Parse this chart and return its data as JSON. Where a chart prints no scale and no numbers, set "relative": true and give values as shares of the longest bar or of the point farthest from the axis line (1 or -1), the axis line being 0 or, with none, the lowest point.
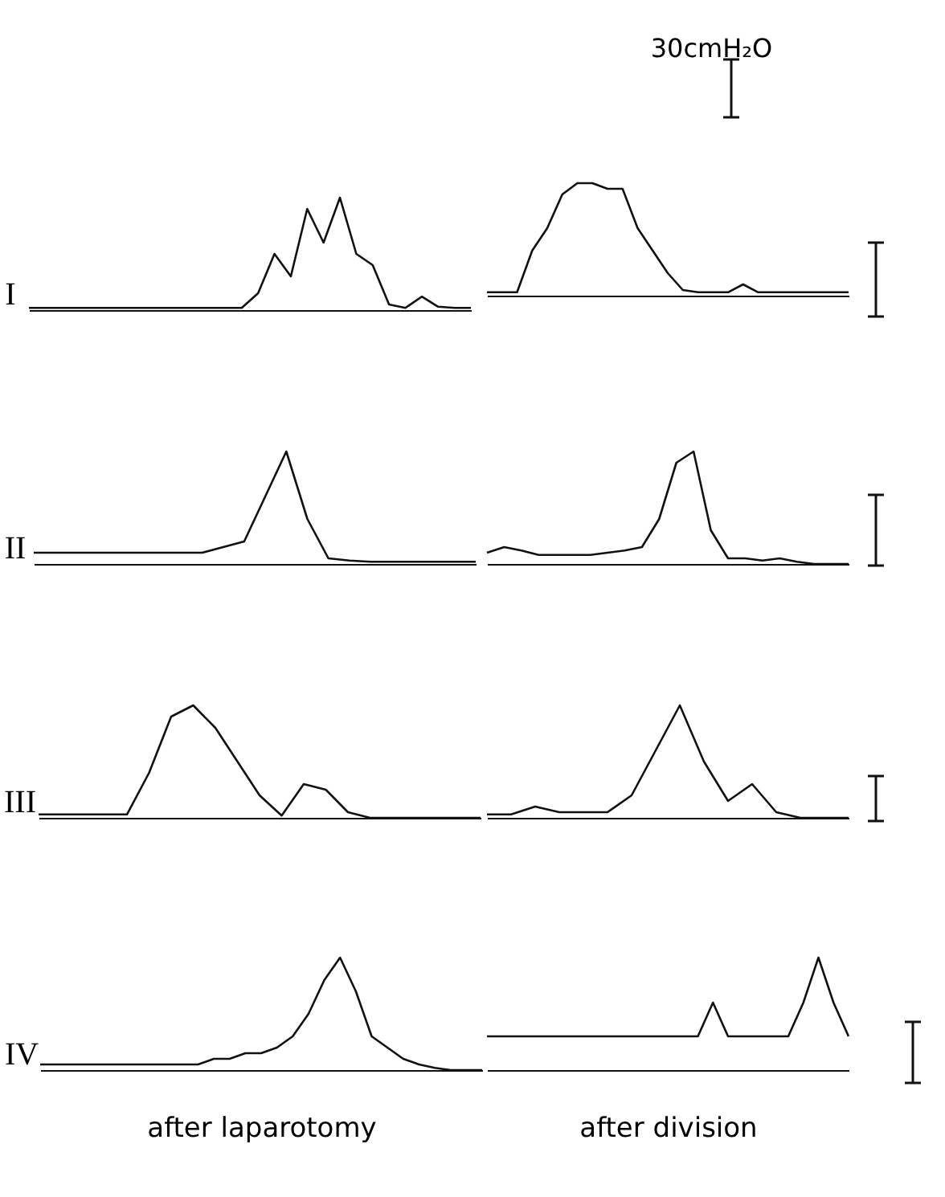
{
  "chart_data": [
    {
      "type": "line",
      "relative": true,
      "ylabel": "I",
      "categories": [
        null,
        null,
        null,
        null,
        null,
        null,
        null,
        null,
        null,
        null,
        null,
        null,
        null,
        null,
        null,
        null,
        null,
        null,
        null,
        null,
        null,
        null,
        null,
        null,
        null,
        null,
        null,
        null
      ],
      "series": [
        {
          "color": "#111111",
          "values": [
            0.02,
            0.02,
            0.02,
            0.02,
            0.02,
            0.02,
            0.02,
            0.02,
            0.02,
            0.02,
            0.02,
            0.02,
            0.02,
            0.02,
            0.15,
            0.5,
            0.3,
            0.9,
            0.6,
            1.0,
            0.5,
            0.4,
            0.05,
            0.02,
            0.12,
            0.03,
            0.02,
            0.02
          ]
        }
      ]
    },
    {
      "type": "line",
      "relative": true,
      "annotations": [
        "30cmH₂O"
      ],
      "categories": [
        null,
        null,
        null,
        null,
        null,
        null,
        null,
        null,
        null,
        null,
        null,
        null,
        null,
        null,
        null,
        null,
        null,
        null,
        null,
        null,
        null,
        null,
        null,
        null,
        null
      ],
      "series": [
        {
          "color": "#111111",
          "values": [
            0.03,
            0.03,
            0.03,
            0.4,
            0.6,
            0.9,
            1.0,
            1.0,
            0.95,
            0.95,
            0.6,
            0.4,
            0.2,
            0.05,
            0.03,
            0.03,
            0.03,
            0.1,
            0.03,
            0.03,
            0.03,
            0.03,
            0.03,
            0.03,
            0.03
          ]
        }
      ]
    },
    {
      "type": "line",
      "relative": true,
      "ylabel": "II",
      "categories": [
        null,
        null,
        null,
        null,
        null,
        null,
        null,
        null,
        null,
        null,
        null,
        null,
        null,
        null,
        null,
        null,
        null,
        null,
        null,
        null,
        null,
        null
      ],
      "series": [
        {
          "color": "#111111",
          "values": [
            0.1,
            0.1,
            0.1,
            0.1,
            0.1,
            0.1,
            0.1,
            0.1,
            0.1,
            0.15,
            0.2,
            0.6,
            1.0,
            0.4,
            0.05,
            0.03,
            0.02,
            0.02,
            0.02,
            0.02,
            0.02,
            0.02
          ]
        }
      ]
    },
    {
      "type": "line",
      "relative": true,
      "categories": [
        null,
        null,
        null,
        null,
        null,
        null,
        null,
        null,
        null,
        null,
        null,
        null,
        null,
        null,
        null,
        null,
        null,
        null,
        null,
        null,
        null,
        null
      ],
      "series": [
        {
          "color": "#111111",
          "values": [
            0.1,
            0.15,
            0.12,
            0.08,
            0.08,
            0.08,
            0.08,
            0.1,
            0.12,
            0.15,
            0.4,
            0.9,
            1.0,
            0.3,
            0.05,
            0.05,
            0.03,
            0.05,
            0.02,
            0.0,
            0.0,
            0.0
          ]
        }
      ]
    },
    {
      "type": "line",
      "relative": true,
      "ylabel": "III",
      "categories": [
        null,
        null,
        null,
        null,
        null,
        null,
        null,
        null,
        null,
        null,
        null,
        null,
        null,
        null,
        null,
        null,
        null,
        null,
        null,
        null,
        null
      ],
      "series": [
        {
          "color": "#111111",
          "values": [
            0.03,
            0.03,
            0.03,
            0.03,
            0.03,
            0.4,
            0.9,
            1.0,
            0.8,
            0.5,
            0.2,
            0.02,
            0.3,
            0.25,
            0.05,
            0.0,
            0.0,
            0.0,
            0.0,
            0.0,
            0.0
          ]
        }
      ]
    },
    {
      "type": "line",
      "relative": true,
      "categories": [
        null,
        null,
        null,
        null,
        null,
        null,
        null,
        null,
        null,
        null,
        null,
        null,
        null,
        null,
        null,
        null
      ],
      "series": [
        {
          "color": "#111111",
          "values": [
            0.03,
            0.03,
            0.1,
            0.05,
            0.05,
            0.05,
            0.2,
            0.6,
            1.0,
            0.5,
            0.15,
            0.3,
            0.05,
            0.0,
            0.0,
            0.0
          ]
        }
      ]
    },
    {
      "type": "line",
      "relative": true,
      "ylabel": "IV",
      "xlabel": "after laparotomy",
      "categories": [
        null,
        null,
        null,
        null,
        null,
        null,
        null,
        null,
        null,
        null,
        null,
        null,
        null,
        null,
        null,
        null,
        null,
        null,
        null,
        null,
        null,
        null,
        null,
        null,
        null,
        null,
        null,
        null,
        null
      ],
      "series": [
        {
          "color": "#111111",
          "values": [
            0.05,
            0.05,
            0.05,
            0.05,
            0.05,
            0.05,
            0.05,
            0.05,
            0.05,
            0.05,
            0.05,
            0.1,
            0.1,
            0.15,
            0.15,
            0.2,
            0.3,
            0.5,
            0.8,
            1.0,
            0.7,
            0.3,
            0.2,
            0.1,
            0.05,
            0.02,
            0.0,
            0.0,
            0.0
          ]
        }
      ]
    },
    {
      "type": "line",
      "relative": true,
      "xlabel": "after division",
      "categories": [
        null,
        null,
        null,
        null,
        null,
        null,
        null,
        null,
        null,
        null,
        null,
        null,
        null,
        null,
        null,
        null,
        null,
        null,
        null,
        null,
        null,
        null,
        null,
        null,
        null
      ],
      "series": [
        {
          "color": "#111111",
          "values": [
            0.3,
            0.3,
            0.3,
            0.3,
            0.3,
            0.3,
            0.3,
            0.3,
            0.3,
            0.3,
            0.3,
            0.3,
            0.3,
            0.3,
            0.3,
            0.6,
            0.3,
            0.3,
            0.3,
            0.3,
            0.3,
            0.6,
            1.0,
            0.6,
            0.3
          ]
        }
      ]
    }
  ]
}
